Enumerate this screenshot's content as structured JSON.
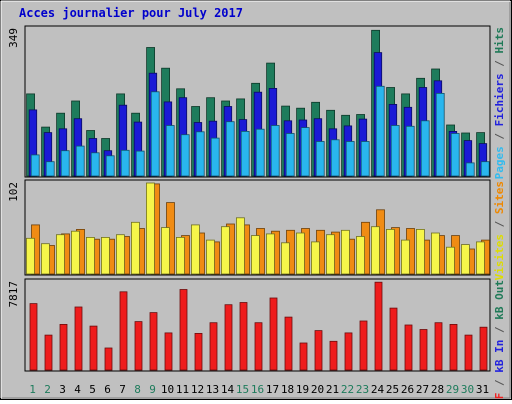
{
  "chart_data": {
    "type": "bar",
    "title": "Acces journalier pour July 2017",
    "categories": [
      "1",
      "2",
      "3",
      "4",
      "5",
      "6",
      "7",
      "8",
      "9",
      "10",
      "11",
      "12",
      "13",
      "14",
      "15",
      "16",
      "17",
      "18",
      "19",
      "20",
      "21",
      "22",
      "23",
      "24",
      "25",
      "26",
      "27",
      "28",
      "29",
      "30",
      "31"
    ],
    "weekend_days": [
      "1",
      "2",
      "8",
      "9",
      "15",
      "16",
      "22",
      "23",
      "29",
      "30"
    ],
    "panels": [
      {
        "id": "hits",
        "axis_max_label": "349",
        "ylim": [
          0,
          349
        ],
        "right_labels": [
          {
            "text": "Pages",
            "color": "#33bbee"
          },
          {
            "text": " / ",
            "color": "#555555"
          },
          {
            "text": "Fichiers",
            "color": "#2222dd"
          },
          {
            "text": " / ",
            "color": "#555555"
          },
          {
            "text": "Hits",
            "color": "#207a58"
          }
        ],
        "series": [
          {
            "name": "Hits",
            "color": "#1e7c5c",
            "values": [
              195,
              116,
              149,
              178,
              108,
              89,
              195,
              149,
              305,
              256,
              207,
              165,
              186,
              178,
              183,
              220,
              268,
              166,
              161,
              175,
              156,
              144,
              146,
              346,
              210,
              195,
              232,
              254,
              121,
              102,
              103
            ]
          },
          {
            "name": "Fichiers",
            "color": "#1a1ad6",
            "values": [
              157,
              103,
              112,
              136,
              89,
              60,
              168,
              128,
              244,
              176,
              186,
              127,
              130,
              165,
              134,
              199,
              208,
              131,
              133,
              136,
              112,
              119,
              135,
              293,
              170,
              163,
              210,
              226,
              106,
              84,
              77
            ]
          },
          {
            "name": "Pages",
            "color": "#29b6ee",
            "values": [
              50,
              34,
              60,
              71,
              55,
              48,
              61,
              59,
              200,
              120,
              98,
              105,
              90,
              129,
              106,
              111,
              120,
              101,
              115,
              82,
              86,
              82,
              82,
              213,
              120,
              118,
              131,
              196,
              101,
              31,
              34
            ]
          }
        ]
      },
      {
        "id": "visits",
        "axis_max_label": "102",
        "ylim": [
          0,
          102
        ],
        "right_labels": [
          {
            "text": "Visites",
            "color": "#dddd00"
          },
          {
            "text": " / ",
            "color": "#555555"
          },
          {
            "text": "Sites",
            "color": "#ee8800"
          }
        ],
        "series": [
          {
            "name": "Visites",
            "color": "#f6f64a",
            "values": [
              40,
              34,
              44,
              48,
              41,
              41,
              44,
              58,
              102,
              52,
              41,
              55,
              38,
              53,
              63,
              43,
              45,
              35,
              46,
              36,
              44,
              49,
              42,
              53,
              50,
              38,
              50,
              46,
              30,
              33,
              36
            ]
          },
          {
            "name": "Sites",
            "color": "#f08c14",
            "values": [
              55,
              32,
              45,
              50,
              39,
              39,
              42,
              51,
              101,
              80,
              43,
              46,
              36,
              56,
              55,
              51,
              48,
              49,
              51,
              49,
              47,
              39,
              58,
              72,
              52,
              51,
              38,
              43,
              43,
              28,
              38
            ]
          }
        ]
      },
      {
        "id": "kb",
        "axis_max_label": "7817",
        "ylim": [
          0,
          7817
        ],
        "right_labels": [
          {
            "text": "kB F",
            "color": "#ee2222"
          },
          {
            "text": " / ",
            "color": "#555555"
          },
          {
            "text": "kB In",
            "color": "#2222dd"
          },
          {
            "text": " / ",
            "color": "#555555"
          },
          {
            "text": "kB Out",
            "color": "#207a58"
          }
        ],
        "series": [
          {
            "name": "kB F",
            "color": "#ee1c1c",
            "values": [
              5900,
              3100,
              4050,
              5600,
              3900,
              1950,
              6950,
              4300,
              5100,
              3300,
              7150,
              3250,
              4200,
              5800,
              6000,
              4200,
              6400,
              4700,
              2400,
              3500,
              2550,
              3300,
              4350,
              7800,
              5500,
              4000,
              3600,
              4200,
              4050,
              3100,
              3800
            ]
          }
        ]
      }
    ]
  }
}
